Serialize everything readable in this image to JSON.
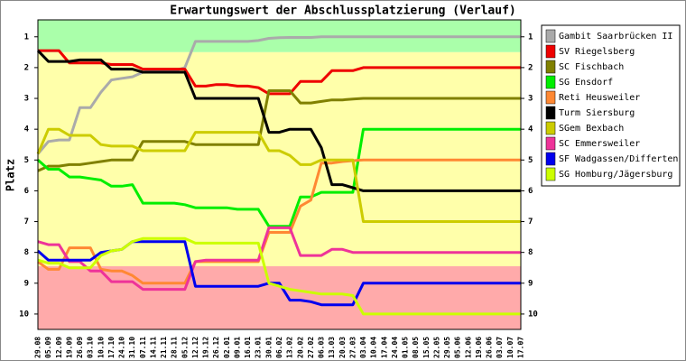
{
  "chart_data": {
    "type": "line",
    "title": "Erwartungswert der Abschlussplatzierung (Verlauf)",
    "y_label": "Platz",
    "categories": [
      "29.08",
      "05.09",
      "12.09",
      "19.09",
      "26.09",
      "03.10",
      "10.10",
      "17.10",
      "24.10",
      "31.10",
      "07.11",
      "14.11",
      "21.11",
      "28.11",
      "05.12",
      "12.12",
      "19.12",
      "26.12",
      "02.01",
      "09.01",
      "16.01",
      "23.01",
      "30.01",
      "06.02",
      "13.02",
      "20.02",
      "27.02",
      "06.03",
      "13.03",
      "20.03",
      "27.03",
      "03.04",
      "10.04",
      "17.04",
      "24.04",
      "01.05",
      "08.05",
      "15.05",
      "22.05",
      "29.05",
      "05.06",
      "12.06",
      "19.06",
      "26.06",
      "03.07",
      "10.07",
      "17.07"
    ],
    "ylim": [
      10.5,
      0.45
    ],
    "yticks": [
      1,
      2,
      3,
      4,
      5,
      6,
      7,
      8,
      9,
      10
    ],
    "bands": [
      {
        "from": 0.45,
        "to": 1.5,
        "color": "#aaffaa"
      },
      {
        "from": 1.5,
        "to": 8.45,
        "color": "#ffffaa"
      },
      {
        "from": 8.45,
        "to": 10.5,
        "color": "#ffaaaa"
      }
    ],
    "legend": "right",
    "series": [
      {
        "name": "Gambit Saarbrücken II",
        "color": "#aaaaaa",
        "values": [
          4.8,
          4.4,
          4.35,
          4.35,
          3.3,
          3.3,
          2.8,
          2.4,
          2.35,
          2.3,
          2.15,
          2.1,
          2.1,
          2.1,
          2.0,
          1.15,
          1.15,
          1.15,
          1.15,
          1.15,
          1.15,
          1.12,
          1.05,
          1.03,
          1.02,
          1.02,
          1.02,
          1.0,
          1.0,
          1.0,
          1.0,
          1.0,
          1.0,
          1.0,
          1.0,
          1.0,
          1.0,
          1.0,
          1.0,
          1.0,
          1.0,
          1.0,
          1.0,
          1.0,
          1.0,
          1.0,
          1.0
        ]
      },
      {
        "name": "SV Riegelsberg",
        "color": "#ee0000",
        "values": [
          1.45,
          1.45,
          1.45,
          1.85,
          1.85,
          1.85,
          1.85,
          1.9,
          1.9,
          1.9,
          2.05,
          2.05,
          2.05,
          2.05,
          2.05,
          2.6,
          2.6,
          2.55,
          2.55,
          2.6,
          2.6,
          2.65,
          2.85,
          2.85,
          2.85,
          2.45,
          2.45,
          2.45,
          2.1,
          2.1,
          2.1,
          2.0,
          2.0,
          2.0,
          2.0,
          2.0,
          2.0,
          2.0,
          2.0,
          2.0,
          2.0,
          2.0,
          2.0,
          2.0,
          2.0,
          2.0,
          2.0
        ]
      },
      {
        "name": "SC Fischbach",
        "color": "#808000",
        "values": [
          5.35,
          5.2,
          5.2,
          5.15,
          5.15,
          5.1,
          5.05,
          5.0,
          5.0,
          5.0,
          4.4,
          4.4,
          4.4,
          4.4,
          4.4,
          4.5,
          4.5,
          4.5,
          4.5,
          4.5,
          4.5,
          4.5,
          2.75,
          2.75,
          2.75,
          3.15,
          3.15,
          3.1,
          3.05,
          3.05,
          3.02,
          3.0,
          3.0,
          3.0,
          3.0,
          3.0,
          3.0,
          3.0,
          3.0,
          3.0,
          3.0,
          3.0,
          3.0,
          3.0,
          3.0,
          3.0,
          3.0
        ]
      },
      {
        "name": "SG Ensdorf",
        "color": "#00ee00",
        "values": [
          5.0,
          5.3,
          5.3,
          5.55,
          5.55,
          5.6,
          5.65,
          5.85,
          5.85,
          5.8,
          6.4,
          6.4,
          6.4,
          6.4,
          6.45,
          6.55,
          6.55,
          6.55,
          6.55,
          6.6,
          6.6,
          6.6,
          7.15,
          7.15,
          7.15,
          6.2,
          6.2,
          6.05,
          6.05,
          6.05,
          6.05,
          4.0,
          4.0,
          4.0,
          4.0,
          4.0,
          4.0,
          4.0,
          4.0,
          4.0,
          4.0,
          4.0,
          4.0,
          4.0,
          4.0,
          4.0,
          4.0
        ]
      },
      {
        "name": "Reti Heusweiler",
        "color": "#ff8833",
        "values": [
          8.3,
          8.55,
          8.55,
          7.85,
          7.85,
          7.85,
          8.55,
          8.6,
          8.6,
          8.75,
          9.0,
          9.0,
          9.0,
          9.0,
          9.0,
          8.3,
          8.3,
          8.3,
          8.3,
          8.3,
          8.3,
          8.3,
          7.35,
          7.35,
          7.35,
          6.5,
          6.3,
          5.1,
          5.1,
          5.05,
          5.02,
          5.0,
          5.0,
          5.0,
          5.0,
          5.0,
          5.0,
          5.0,
          5.0,
          5.0,
          5.0,
          5.0,
          5.0,
          5.0,
          5.0,
          5.0,
          5.0
        ]
      },
      {
        "name": "Turm Siersburg",
        "color": "#000000",
        "values": [
          1.45,
          1.8,
          1.8,
          1.8,
          1.75,
          1.75,
          1.75,
          2.05,
          2.05,
          2.05,
          2.15,
          2.15,
          2.15,
          2.15,
          2.15,
          3.0,
          3.0,
          3.0,
          3.0,
          3.0,
          3.0,
          3.0,
          4.1,
          4.1,
          4.0,
          4.0,
          4.0,
          4.6,
          5.8,
          5.8,
          5.9,
          6.0,
          6.0,
          6.0,
          6.0,
          6.0,
          6.0,
          6.0,
          6.0,
          6.0,
          6.0,
          6.0,
          6.0,
          6.0,
          6.0,
          6.0,
          6.0
        ]
      },
      {
        "name": "SGem Bexbach",
        "color": "#cccc00",
        "values": [
          4.8,
          4.0,
          4.0,
          4.2,
          4.2,
          4.2,
          4.5,
          4.55,
          4.55,
          4.55,
          4.7,
          4.7,
          4.7,
          4.7,
          4.7,
          4.1,
          4.1,
          4.1,
          4.1,
          4.1,
          4.1,
          4.1,
          4.7,
          4.7,
          4.85,
          5.15,
          5.15,
          5.0,
          5.0,
          5.0,
          5.0,
          7.0,
          7.0,
          7.0,
          7.0,
          7.0,
          7.0,
          7.0,
          7.0,
          7.0,
          7.0,
          7.0,
          7.0,
          7.0,
          7.0,
          7.0,
          7.0
        ]
      },
      {
        "name": "SC Emmersweiler",
        "color": "#ee3399",
        "values": [
          7.65,
          7.75,
          7.75,
          8.3,
          8.3,
          8.6,
          8.6,
          8.95,
          8.95,
          8.95,
          9.2,
          9.2,
          9.2,
          9.2,
          9.2,
          8.3,
          8.25,
          8.25,
          8.25,
          8.25,
          8.25,
          8.25,
          7.2,
          7.2,
          7.2,
          8.1,
          8.1,
          8.1,
          7.9,
          7.9,
          8.0,
          8.0,
          8.0,
          8.0,
          8.0,
          8.0,
          8.0,
          8.0,
          8.0,
          8.0,
          8.0,
          8.0,
          8.0,
          8.0,
          8.0,
          8.0,
          8.0
        ]
      },
      {
        "name": "SF Wadgassen/Differten",
        "color": "#0000ee",
        "values": [
          7.95,
          8.25,
          8.25,
          8.25,
          8.25,
          8.25,
          8.0,
          7.95,
          7.9,
          7.65,
          7.65,
          7.65,
          7.65,
          7.65,
          7.65,
          9.1,
          9.1,
          9.1,
          9.1,
          9.1,
          9.1,
          9.1,
          9.0,
          9.0,
          9.55,
          9.55,
          9.6,
          9.7,
          9.7,
          9.7,
          9.7,
          9.0,
          9.0,
          9.0,
          9.0,
          9.0,
          9.0,
          9.0,
          9.0,
          9.0,
          9.0,
          9.0,
          9.0,
          9.0,
          9.0,
          9.0,
          9.0
        ]
      },
      {
        "name": "SG Homburg/Jägersburg",
        "color": "#ccff00",
        "values": [
          8.25,
          8.35,
          8.35,
          8.5,
          8.5,
          8.5,
          8.1,
          7.95,
          7.9,
          7.65,
          7.55,
          7.55,
          7.55,
          7.55,
          7.55,
          7.7,
          7.7,
          7.7,
          7.7,
          7.7,
          7.7,
          7.7,
          9.0,
          9.1,
          9.2,
          9.25,
          9.3,
          9.35,
          9.35,
          9.35,
          9.4,
          10.0,
          10.0,
          10.0,
          10.0,
          10.0,
          10.0,
          10.0,
          10.0,
          10.0,
          10.0,
          10.0,
          10.0,
          10.0,
          10.0,
          10.0,
          10.0
        ]
      }
    ]
  }
}
